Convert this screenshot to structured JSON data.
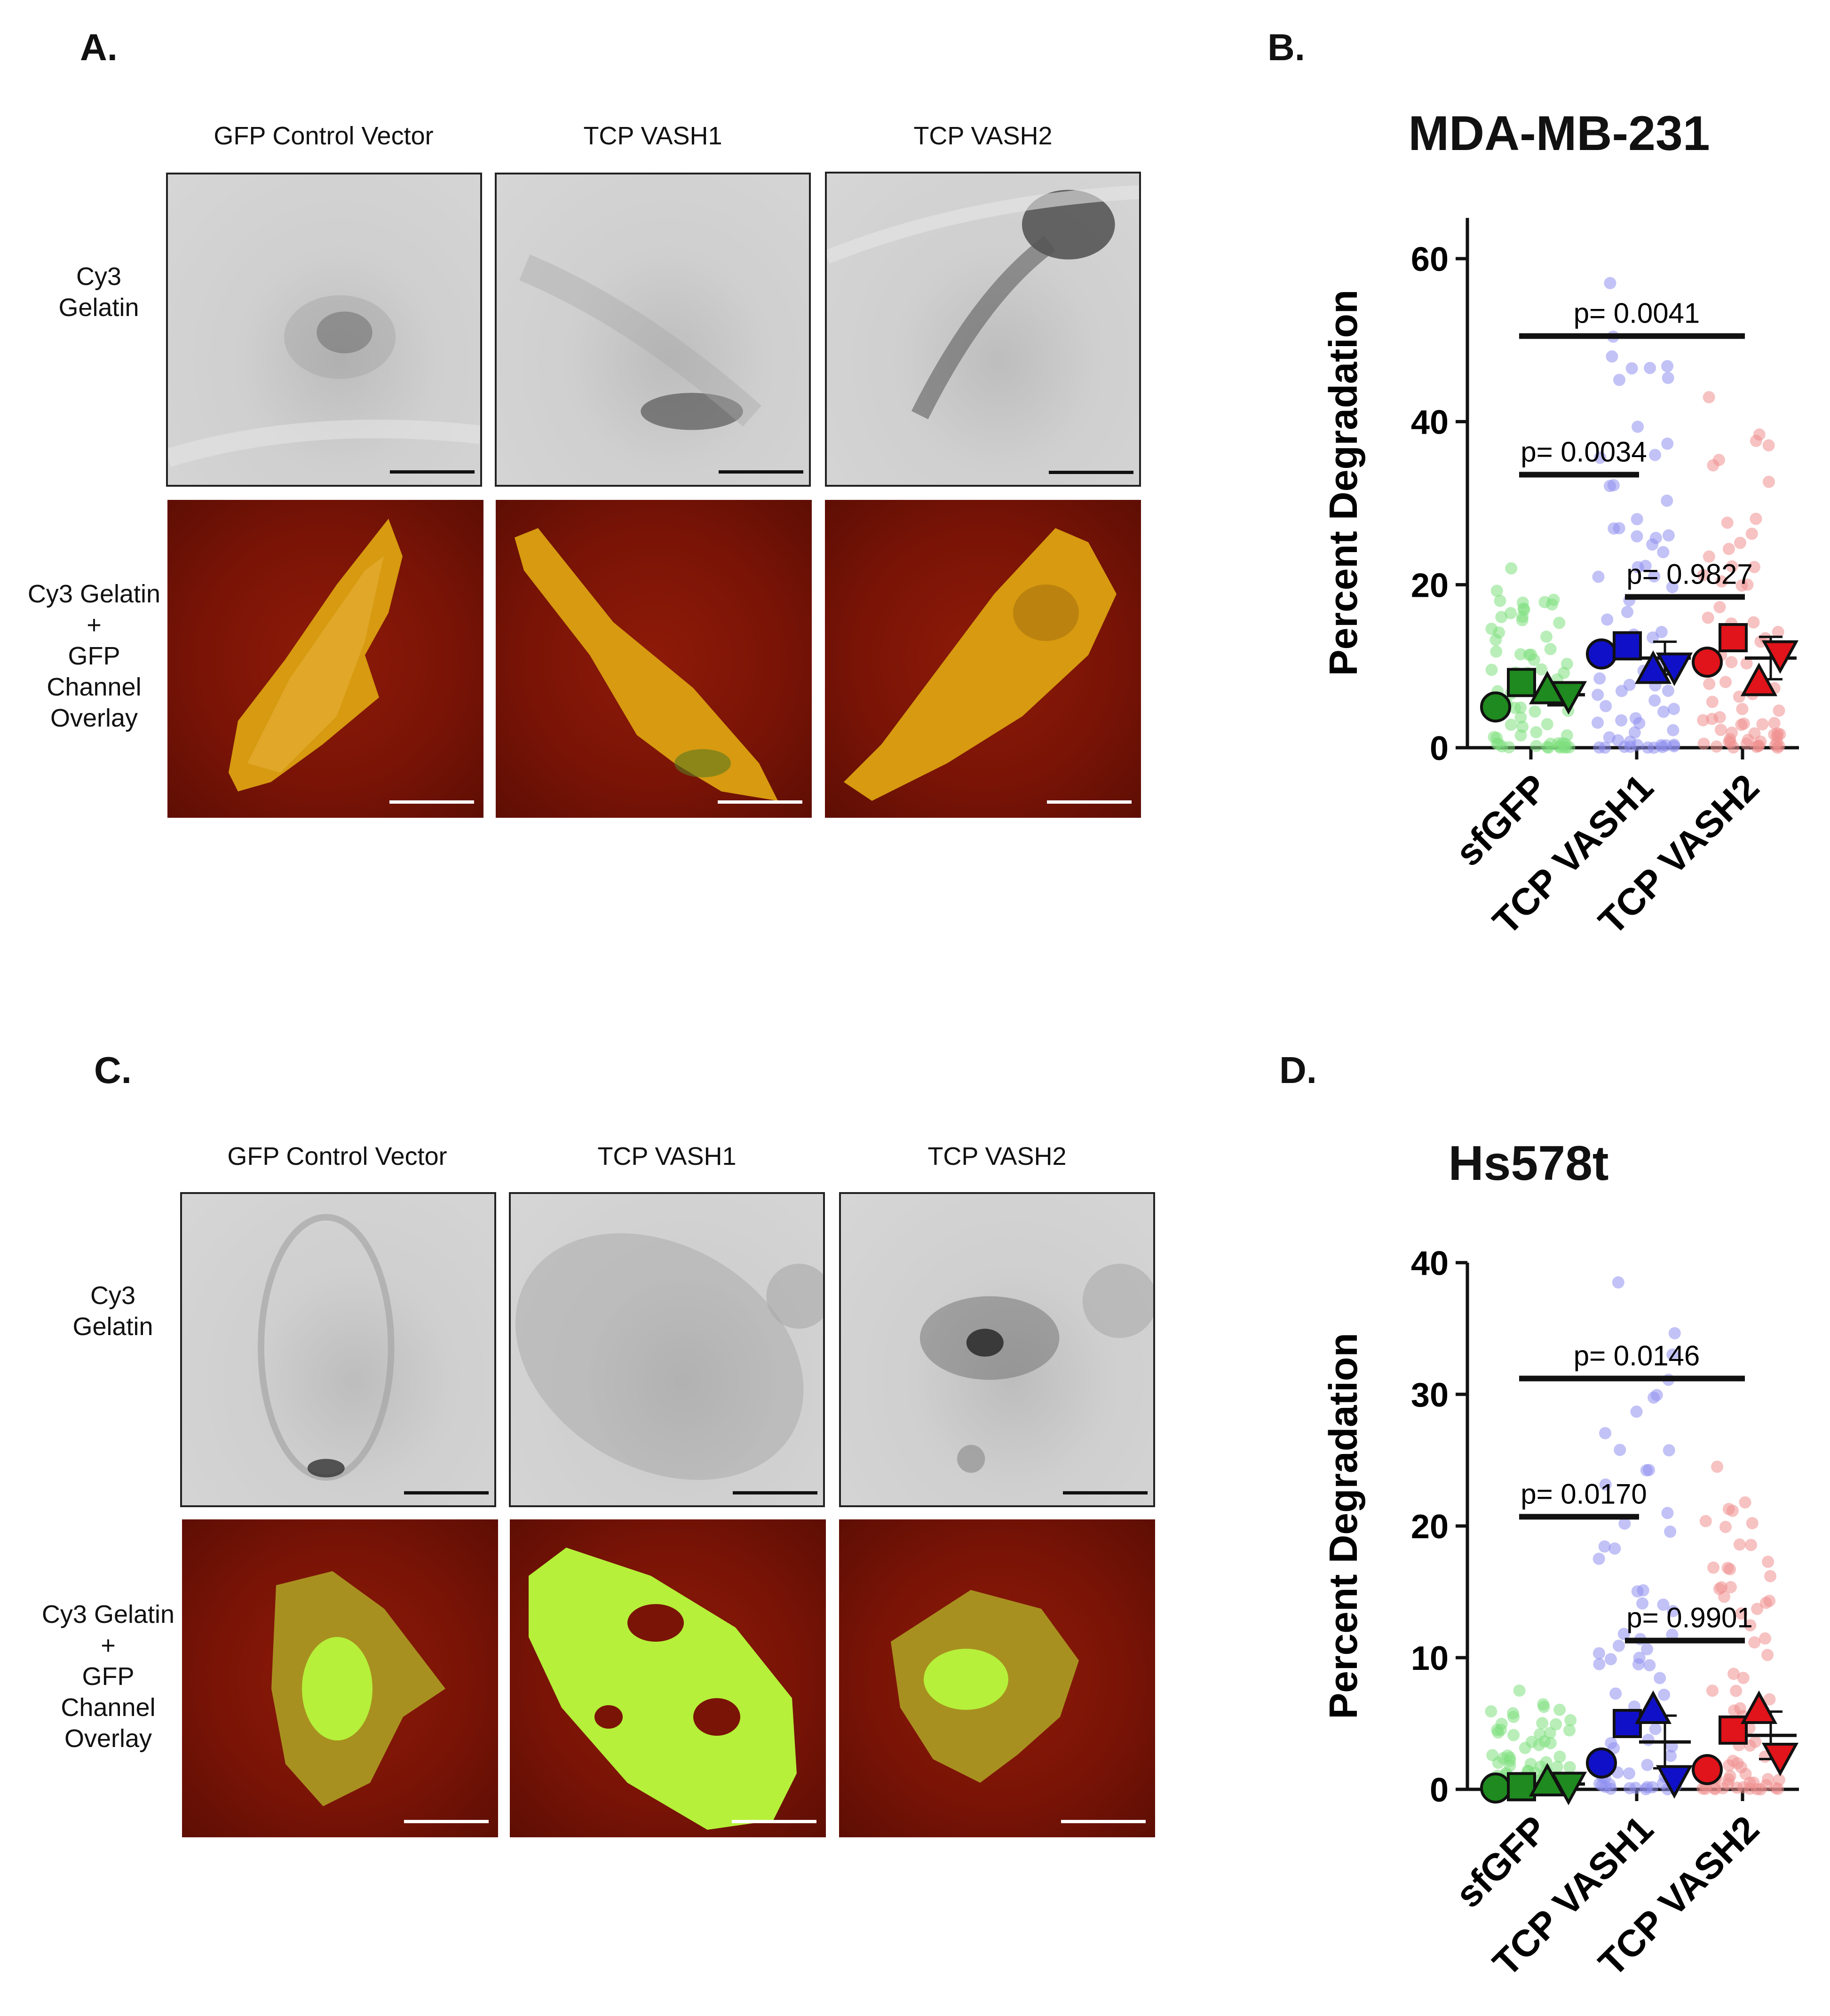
{
  "panels": {
    "a": {
      "letter": "A.",
      "col_heads": [
        "GFP Control Vector",
        "TCP VASH1",
        "TCP VASH2"
      ],
      "row_labels": [
        "Cy3\nGelatin",
        "Cy3 Gelatin\n+\nGFP\nChannel\nOverlay"
      ]
    },
    "b": {
      "letter": "B."
    },
    "c": {
      "letter": "C.",
      "col_heads": [
        "GFP Control Vector",
        "TCP VASH1",
        "TCP VASH2"
      ],
      "row_labels": [
        "Cy3\nGelatin",
        "Cy3 Gelatin\n+\nGFP\nChannel\nOverlay"
      ]
    },
    "d": {
      "letter": "D."
    }
  },
  "colors": {
    "sfGFP": "#1f8a1f",
    "TCP VASH1": "#1010c8",
    "TCP VASH2": "#e0141a",
    "sfGFP_light": "#7fe07f",
    "VASH1_light": "#8f8ff0",
    "VASH2_light": "#f08f8f",
    "micro_red": "#7a1406",
    "cell_yellow": "#d79a10",
    "cell_green": "#b6f03a"
  },
  "chart_data": [
    {
      "type": "scatter",
      "title": "MDA-MB-231",
      "ylabel": "Percent Degradation",
      "xlabel": "",
      "categories": [
        "sfGFP",
        "TCP VASH1",
        "TCP VASH2"
      ],
      "ylim": [
        0,
        65
      ],
      "yticks": [
        0,
        20,
        40,
        60
      ],
      "grid": false,
      "means": [
        6.5,
        11,
        11
      ],
      "sd": [
        1.3,
        2.0,
        2.6
      ],
      "replicate_means": [
        {
          "shape": "circle",
          "values": [
            5,
            11.5,
            10.5
          ]
        },
        {
          "shape": "square",
          "values": [
            8,
            12.5,
            13.5
          ]
        },
        {
          "shape": "triangle-up",
          "values": [
            7,
            9.5,
            8
          ]
        },
        {
          "shape": "triangle-down",
          "values": [
            6.5,
            10,
            11.5
          ]
        }
      ],
      "individual_points_max": [
        22,
        57,
        43
      ],
      "comparisons": [
        {
          "groups": [
            "sfGFP",
            "TCP VASH1"
          ],
          "y": 33.5,
          "label": "p= 0.0034"
        },
        {
          "groups": [
            "sfGFP",
            "TCP VASH2"
          ],
          "y": 50.5,
          "label": "p= 0.0041"
        },
        {
          "groups": [
            "TCP VASH1",
            "TCP VASH2"
          ],
          "y": 18.5,
          "label": "p= 0.9827"
        }
      ]
    },
    {
      "type": "scatter",
      "title": "Hs578t",
      "ylabel": "Percent Degradation",
      "xlabel": "",
      "categories": [
        "sfGFP",
        "TCP VASH1",
        "TCP VASH2"
      ],
      "ylim": [
        0,
        40
      ],
      "yticks": [
        0,
        10,
        20,
        30,
        40
      ],
      "grid": false,
      "means": [
        0.4,
        3.6,
        4.1
      ],
      "sd": [
        0.4,
        2.0,
        1.8
      ],
      "replicate_means": [
        {
          "shape": "circle",
          "values": [
            0.1,
            2,
            1.5
          ]
        },
        {
          "shape": "square",
          "values": [
            0.2,
            5,
            4.5
          ]
        },
        {
          "shape": "triangle-up",
          "values": [
            0.5,
            6,
            6
          ]
        },
        {
          "shape": "triangle-down",
          "values": [
            0.3,
            0.8,
            2.5
          ]
        }
      ],
      "individual_points_max": [
        7.5,
        38.5,
        24.5
      ],
      "comparisons": [
        {
          "groups": [
            "sfGFP",
            "TCP VASH1"
          ],
          "y": 20.7,
          "label": "p= 0.0170"
        },
        {
          "groups": [
            "sfGFP",
            "TCP VASH2"
          ],
          "y": 31.2,
          "label": "p= 0.0146"
        },
        {
          "groups": [
            "TCP VASH1",
            "TCP VASH2"
          ],
          "y": 11.3,
          "label": "p= 0.9901"
        }
      ]
    }
  ]
}
